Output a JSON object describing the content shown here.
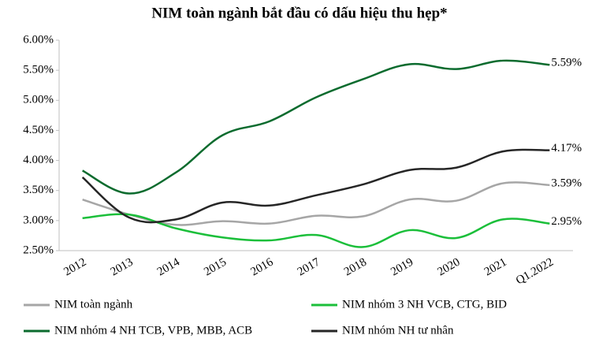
{
  "chart_data": {
    "type": "line",
    "title": "NIM toàn ngành bắt đầu có dấu hiệu thu hẹp*",
    "categories": [
      "2012",
      "2013",
      "2014",
      "2015",
      "2016",
      "2017",
      "2018",
      "2019",
      "2020",
      "2021",
      "Q1.2022"
    ],
    "series": [
      {
        "name": "NIM toàn ngành",
        "color": "#a6a6a6",
        "values": [
          3.35,
          3.1,
          2.93,
          2.99,
          2.95,
          3.08,
          3.07,
          3.35,
          3.33,
          3.62,
          3.59
        ],
        "value_labels": [
          null,
          null,
          null,
          null,
          null,
          null,
          null,
          null,
          null,
          null,
          "3.59%"
        ]
      },
      {
        "name": "NIM nhóm 3 NH VCB, CTG, BID",
        "color": "#1bbf3a",
        "values": [
          3.04,
          3.1,
          2.87,
          2.72,
          2.67,
          2.76,
          2.56,
          2.84,
          2.71,
          3.02,
          2.95
        ],
        "value_labels": [
          null,
          null,
          null,
          null,
          null,
          null,
          null,
          null,
          null,
          null,
          "2.95%"
        ]
      },
      {
        "name": "NIM nhóm 4 NH TCB, VPB, MBB, ACB",
        "color": "#0b6b2e",
        "values": [
          3.83,
          3.45,
          3.8,
          4.42,
          4.65,
          5.05,
          5.35,
          5.6,
          5.52,
          5.66,
          5.59
        ],
        "value_labels": [
          null,
          null,
          null,
          null,
          null,
          null,
          null,
          null,
          null,
          null,
          "5.59%"
        ]
      },
      {
        "name": "NIM nhóm NH tư nhân",
        "color": "#262626",
        "values": [
          3.72,
          3.05,
          3.02,
          3.3,
          3.25,
          3.42,
          3.6,
          3.84,
          3.88,
          4.15,
          4.17
        ],
        "value_labels": [
          null,
          null,
          null,
          null,
          null,
          null,
          null,
          null,
          null,
          null,
          "4.17%"
        ]
      }
    ],
    "ylim": [
      2.5,
      6.0
    ],
    "yticks": [
      {
        "value": 2.5,
        "label": "2.50%"
      },
      {
        "value": 3.0,
        "label": "3.00%"
      },
      {
        "value": 3.5,
        "label": "3.50%"
      },
      {
        "value": 4.0,
        "label": "4.00%"
      },
      {
        "value": 4.5,
        "label": "4.50%"
      },
      {
        "value": 5.0,
        "label": "5.00%"
      },
      {
        "value": 5.5,
        "label": "5.50%"
      },
      {
        "value": 6.0,
        "label": "6.00%"
      }
    ]
  }
}
